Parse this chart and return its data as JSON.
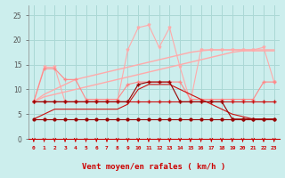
{
  "x": [
    0,
    1,
    2,
    3,
    4,
    5,
    6,
    7,
    8,
    9,
    10,
    11,
    12,
    13,
    14,
    15,
    16,
    17,
    18,
    19,
    20,
    21,
    22,
    23
  ],
  "line_thin_upper": [
    7.5,
    14.5,
    14.5,
    7.5,
    7.5,
    7.5,
    7.5,
    7.5,
    7.5,
    18,
    22.5,
    23,
    18.5,
    22.5,
    14.5,
    7.5,
    18,
    18,
    18,
    18,
    18,
    18,
    18.5,
    11.5
  ],
  "line_med_upper": [
    7.5,
    14.2,
    14.2,
    12,
    12,
    8,
    8,
    8,
    8,
    11,
    11.5,
    11.5,
    11.5,
    11.5,
    11.5,
    8,
    8,
    8,
    8,
    8,
    8,
    8,
    11.5,
    11.5
  ],
  "line_smooth_top": [
    7.5,
    9,
    10,
    11,
    12,
    12.5,
    13,
    13.5,
    14,
    14.5,
    15,
    15.5,
    16,
    16.5,
    17,
    17.5,
    17.8,
    18,
    18,
    18,
    18,
    18,
    18,
    18
  ],
  "line_smooth_bot": [
    7.5,
    8.5,
    9,
    9.5,
    10,
    10.5,
    11,
    11.5,
    12,
    12.5,
    13,
    13.5,
    14,
    14.5,
    15,
    15.5,
    16,
    16.5,
    17,
    17.5,
    17.8,
    17.8,
    17.8,
    17.8
  ],
  "line_dark_mid": [
    7.5,
    7.5,
    7.5,
    7.5,
    7.5,
    7.5,
    7.5,
    7.5,
    7.5,
    7.5,
    7.5,
    7.5,
    7.5,
    7.5,
    7.5,
    7.5,
    7.5,
    7.5,
    7.5,
    7.5,
    7.5,
    7.5,
    7.5,
    7.5
  ],
  "line_bottom": [
    4,
    4,
    4,
    4,
    4,
    4,
    4,
    4,
    4,
    4,
    4,
    4,
    4,
    4,
    4,
    4,
    4,
    4,
    4,
    4,
    4,
    4,
    4,
    4
  ],
  "line_slope": [
    4,
    5,
    6,
    6,
    6,
    6,
    6,
    6,
    6,
    7,
    10,
    11,
    11,
    11,
    10,
    9,
    8,
    7,
    6,
    5,
    4.5,
    4,
    4,
    4
  ],
  "line_dark_var": [
    7.5,
    7.5,
    7.5,
    7.5,
    7.5,
    7.5,
    7.5,
    7.5,
    7.5,
    7.5,
    11,
    11.5,
    11.5,
    11.5,
    7.5,
    7.5,
    7.5,
    7.5,
    7.5,
    4,
    4,
    4,
    4,
    4
  ],
  "bg_color": "#cceeed",
  "grid_color": "#aad8d5",
  "color_light_pink": "#ffaaaa",
  "color_med_pink": "#ff8888",
  "color_dark_red": "#cc1111",
  "color_darker_red": "#990000",
  "xlabel": "Vent moyen/en rafales ( km/h )",
  "ylim": [
    0,
    27
  ],
  "yticks": [
    0,
    5,
    10,
    15,
    20,
    25
  ],
  "xlim": [
    -0.5,
    23.5
  ]
}
